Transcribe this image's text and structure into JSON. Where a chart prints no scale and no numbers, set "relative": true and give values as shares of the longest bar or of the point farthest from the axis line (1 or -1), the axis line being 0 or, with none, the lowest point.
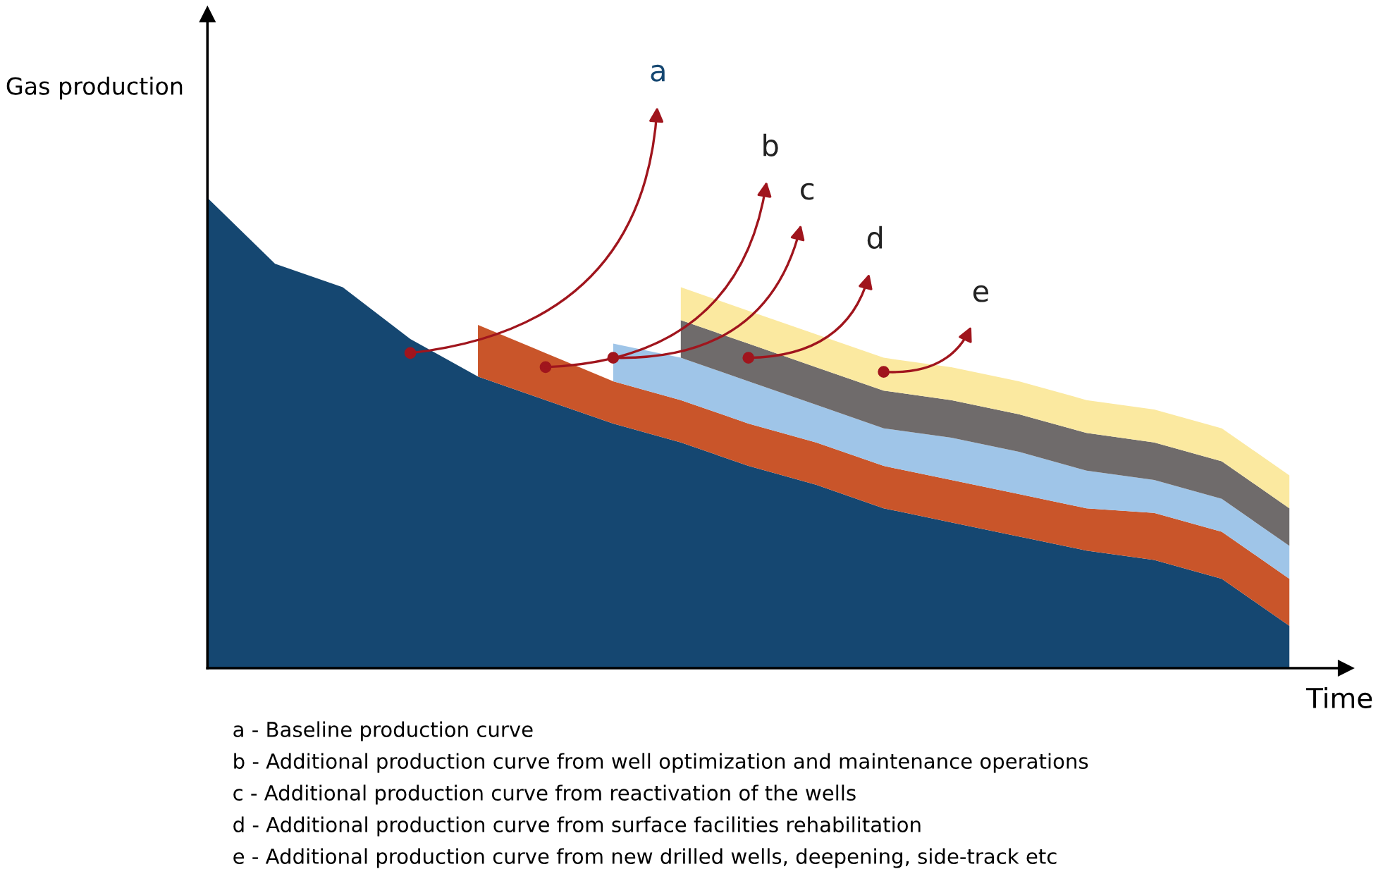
{
  "chart_data": {
    "type": "area",
    "stacked": true,
    "relative": true,
    "xlabel": "Time",
    "ylabel": "Gas production",
    "categories": [
      null,
      null,
      null,
      null,
      null,
      null,
      null,
      null,
      null,
      null,
      null,
      null,
      null,
      null,
      null,
      null,
      null
    ],
    "series": [
      {
        "name": "a",
        "color": "#154771",
        "values": [
          1,
          0.86,
          0.81,
          0.7,
          0.62,
          0.57,
          0.52,
          0.48,
          0.43,
          0.39,
          0.34,
          0.31,
          0.28,
          0.25,
          0.23,
          0.19,
          0.09
        ]
      },
      {
        "name": "b",
        "color": "#c9552a",
        "values": [
          null,
          null,
          null,
          null,
          0.11,
          0.1,
          0.09,
          0.09,
          0.09,
          0.09,
          0.09,
          0.09,
          0.09,
          0.09,
          0.1,
          0.1,
          0.1
        ]
      },
      {
        "name": "c",
        "color": "#9fc5e8",
        "values": [
          null,
          null,
          null,
          null,
          null,
          null,
          0.08,
          0.09,
          0.09,
          0.08,
          0.08,
          0.09,
          0.09,
          0.08,
          0.07,
          0.07,
          0.07
        ]
      },
      {
        "name": "d",
        "color": "#6f6b6b",
        "values": [
          null,
          null,
          null,
          null,
          null,
          null,
          null,
          0.08,
          0.08,
          0.08,
          0.08,
          0.08,
          0.08,
          0.08,
          0.08,
          0.08,
          0.08
        ]
      },
      {
        "name": "e",
        "color": "#fbe9a0",
        "values": [
          null,
          null,
          null,
          null,
          null,
          null,
          null,
          0.07,
          0.07,
          0.07,
          0.07,
          0.07,
          0.07,
          0.07,
          0.07,
          0.07,
          0.07
        ]
      }
    ],
    "annotations": [
      "a - Baseline production curve",
      "b - Additional production curve from well optimization and maintenance operations",
      "c - Additional production curve from reactivation of the wells",
      "d - Additional production curve from surface facilities rehabilitation",
      "e - Additional production curve from new drilled wells, deepening, side-track etc"
    ]
  }
}
